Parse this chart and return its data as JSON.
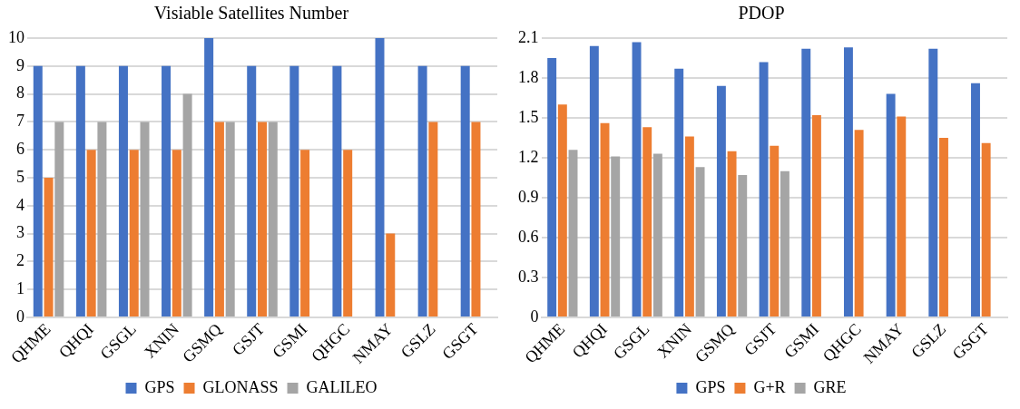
{
  "chart_data": [
    {
      "type": "bar",
      "title": "Visiable Satellites Number",
      "categories": [
        "QHME",
        "QHQI",
        "GSGL",
        "XNIN",
        "GSMQ",
        "GSJT",
        "GSMI",
        "QHGC",
        "NMAY",
        "GSLZ",
        "GSGT"
      ],
      "series": [
        {
          "name": "GPS",
          "color": "#4472c4",
          "values": [
            9,
            9,
            9,
            9,
            10,
            9,
            9,
            9,
            10,
            9,
            9
          ]
        },
        {
          "name": "GLONASS",
          "color": "#ed7d31",
          "values": [
            5,
            6,
            6,
            6,
            7,
            7,
            6,
            6,
            3,
            7,
            7
          ]
        },
        {
          "name": "GALILEO",
          "color": "#a5a5a5",
          "values": [
            7,
            7,
            7,
            8,
            7,
            7,
            0,
            0,
            0,
            0,
            0
          ]
        }
      ],
      "ylim": [
        0,
        10
      ],
      "yticks": [
        0,
        1,
        2,
        3,
        4,
        5,
        6,
        7,
        8,
        9,
        10
      ],
      "grid": "y",
      "legend": "bottom"
    },
    {
      "type": "bar",
      "title": "PDOP",
      "categories": [
        "QHME",
        "QHQI",
        "GSGL",
        "XNIN",
        "GSMQ",
        "GSJT",
        "GSMI",
        "QHGC",
        "NMAY",
        "GSLZ",
        "GSGT"
      ],
      "series": [
        {
          "name": "GPS",
          "color": "#4472c4",
          "values": [
            1.95,
            2.04,
            2.07,
            1.87,
            1.74,
            1.92,
            2.02,
            2.03,
            1.68,
            2.02,
            1.76
          ]
        },
        {
          "name": "G+R",
          "color": "#ed7d31",
          "values": [
            1.6,
            1.46,
            1.43,
            1.36,
            1.25,
            1.29,
            1.52,
            1.41,
            1.51,
            1.35,
            1.31
          ]
        },
        {
          "name": "GRE",
          "color": "#a5a5a5",
          "values": [
            1.26,
            1.21,
            1.23,
            1.13,
            1.07,
            1.1,
            0,
            0,
            0,
            0,
            0
          ]
        }
      ],
      "ylim": [
        0,
        2.1
      ],
      "yticks": [
        0,
        0.3,
        0.6,
        0.9,
        1.2,
        1.5,
        1.8,
        2.1
      ],
      "grid": "y",
      "legend": "bottom"
    }
  ]
}
